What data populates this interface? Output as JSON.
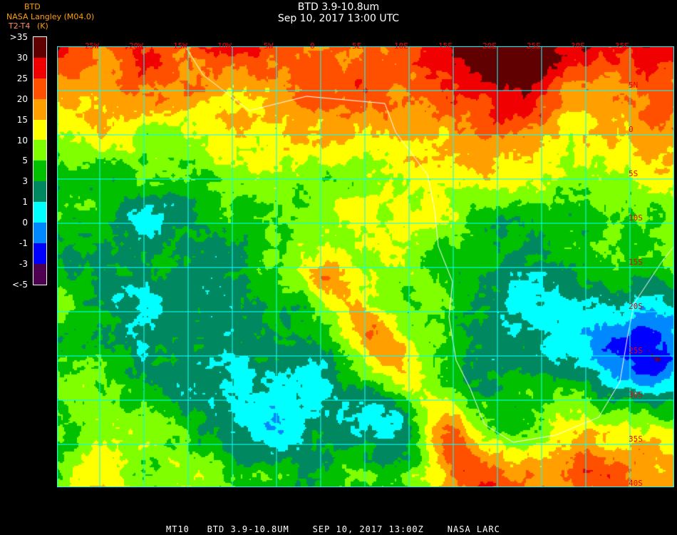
{
  "header": {
    "title": "BTD 3.9-10.8um",
    "subtitle": "Sep 10, 2017 13:00 UTC",
    "organization": "NASA Langley (M04.0)",
    "product": "BTD",
    "units_label": "T2-T4",
    "units": "(K)"
  },
  "legend": {
    "labels": [
      ">35",
      "30",
      "25",
      "20",
      "15",
      "10",
      "5",
      "3",
      "1",
      "0",
      "-1",
      "-3",
      "<-5"
    ],
    "colors": [
      "#600000",
      "#f00000",
      "#ff5000",
      "#ffa000",
      "#ffff00",
      "#80ff00",
      "#00c000",
      "#008860",
      "#00ffff",
      "#0088ff",
      "#0000ff",
      "#500050"
    ]
  },
  "map": {
    "longitude_labels": [
      "25W",
      "20W",
      "15W",
      "10W",
      "5W",
      "0",
      "5E",
      "10E",
      "15E",
      "20E",
      "25E",
      "30E",
      "35E"
    ],
    "latitude_labels": [
      "5N",
      "0",
      "5S",
      "10S",
      "15S",
      "20S",
      "25S",
      "30S",
      "35S",
      "40S"
    ],
    "grid_color": "#00ffff",
    "label_color": "#f00000",
    "coastline_color": "#ffffff"
  },
  "footer": {
    "text": "MT10   BTD 3.9-10.8UM    SEP 10, 2017 13:00Z    NASA LARC"
  }
}
